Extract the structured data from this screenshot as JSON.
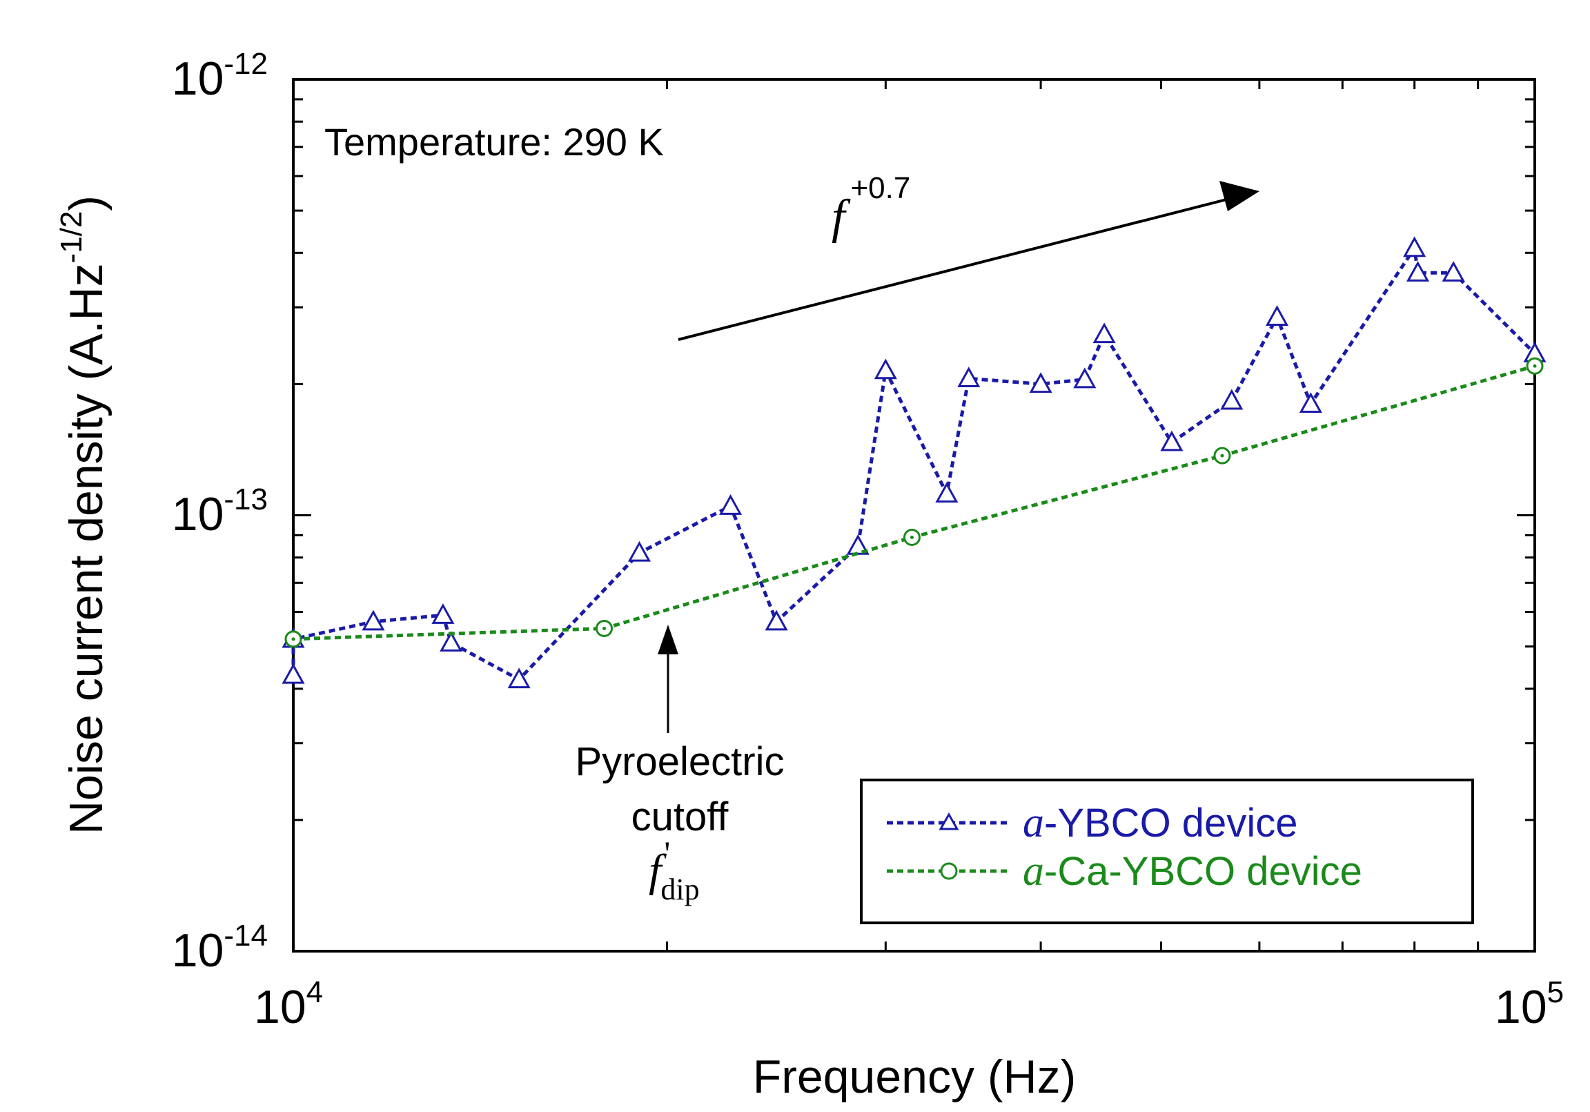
{
  "chart_data": {
    "type": "line",
    "xscale": "log",
    "yscale": "log",
    "xlim": [
      10000,
      100000
    ],
    "ylim": [
      1e-14,
      1e-12
    ],
    "xlabel": "Frequency (Hz)",
    "ylabel": {
      "main": "Noise current density (A.Hz",
      "exponent": "-1/2",
      "close": ")"
    },
    "x_ticks": [
      {
        "base": "10",
        "exp": "4",
        "value": 10000
      },
      {
        "base": "10",
        "exp": "5",
        "value": 100000
      }
    ],
    "y_ticks": [
      {
        "base": "10",
        "exp": "-14",
        "value": 1e-14
      },
      {
        "base": "10",
        "exp": "-13",
        "value": 1e-13
      },
      {
        "base": "10",
        "exp": "-12",
        "value": 1e-12
      }
    ],
    "series": [
      {
        "name": "a-YBCO device",
        "name_italic": "a",
        "name_rest": "-YBCO device",
        "color": "#1a1aa8",
        "marker": "triangle",
        "points": [
          [
            10000,
            4.3e-14
          ],
          [
            10000,
            5.2e-14
          ],
          [
            11600,
            5.7e-14
          ],
          [
            13200,
            5.9e-14
          ],
          [
            13400,
            5.1e-14
          ],
          [
            15200,
            4.2e-14
          ],
          [
            19000,
            8.2e-14
          ],
          [
            22500,
            1.05e-13
          ],
          [
            24500,
            5.7e-14
          ],
          [
            28500,
            8.5e-14
          ],
          [
            30000,
            2.15e-13
          ],
          [
            33600,
            1.12e-13
          ],
          [
            35000,
            2.06e-13
          ],
          [
            40000,
            2e-13
          ],
          [
            43400,
            2.05e-13
          ],
          [
            45000,
            2.6e-13
          ],
          [
            51000,
            1.47e-13
          ],
          [
            57000,
            1.83e-13
          ],
          [
            62000,
            2.85e-13
          ],
          [
            66000,
            1.8e-13
          ],
          [
            80000,
            4.1e-13
          ],
          [
            80500,
            3.6e-13
          ],
          [
            86000,
            3.6e-13
          ],
          [
            100000,
            2.35e-13
          ]
        ]
      },
      {
        "name": "a-Ca-YBCO device",
        "name_italic": "a",
        "name_rest": "-Ca-YBCO device",
        "color": "#1a8a1a",
        "marker": "circle",
        "points": [
          [
            10000,
            5.2e-14
          ],
          [
            17800,
            5.5e-14
          ],
          [
            31500,
            8.9e-14
          ],
          [
            56000,
            1.37e-13
          ],
          [
            100000,
            2.2e-13
          ]
        ]
      }
    ],
    "annotations": {
      "temperature": "Temperature: 290 K",
      "slope_f": "f",
      "slope_exp": "+0.7",
      "cutoff_line1": "Pyroelectric",
      "cutoff_line2": "cutoff",
      "cutoff_f": "f",
      "cutoff_prime": "'",
      "cutoff_sub": "dip"
    },
    "legend_position": "bottom-right"
  }
}
